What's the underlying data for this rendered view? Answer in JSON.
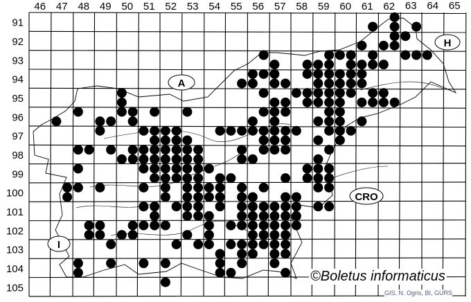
{
  "grid": {
    "columns": [
      "46",
      "47",
      "48",
      "49",
      "50",
      "51",
      "52",
      "53",
      "54",
      "55",
      "56",
      "57",
      "58",
      "59",
      "60",
      "61",
      "62",
      "63",
      "64",
      "65"
    ],
    "rows": [
      "91",
      "92",
      "93",
      "94",
      "95",
      "96",
      "97",
      "98",
      "99",
      "100",
      "101",
      "102",
      "103",
      "104",
      "105"
    ]
  },
  "country_labels": {
    "austria": "A",
    "hungary": "H",
    "croatia": "CRO",
    "italy": "I"
  },
  "copyright": "©Boletus informaticus",
  "credit": "GIS, N. Ogris, BI, GURS",
  "colors": {
    "dot": "#000000",
    "grid": "#000000",
    "credit": "#4a5a78"
  },
  "records": [
    {
      "row": 91.25,
      "cols": [
        62.75
      ]
    },
    {
      "row": 91.75,
      "cols": [
        61.75,
        62.75,
        63.75
      ]
    },
    {
      "row": 92.25,
      "cols": [
        62.75,
        63.25
      ]
    },
    {
      "row": 92.75,
      "cols": [
        61.25,
        62.25,
        62.75
      ]
    },
    {
      "row": 93.25,
      "cols": [
        56.75,
        59.75,
        60.25,
        60.75,
        61.75,
        63.25,
        63.75,
        64.25
      ]
    },
    {
      "row": 93.75,
      "cols": [
        57.25,
        58.75,
        59.25,
        59.75,
        60.75,
        61.25,
        61.75,
        62.25
      ]
    },
    {
      "row": 94.25,
      "cols": [
        56.25,
        56.75,
        57.25,
        58.75,
        59.25,
        59.75,
        60.25,
        60.75,
        61.25
      ]
    },
    {
      "row": 94.75,
      "cols": [
        55.75,
        56.25,
        57.25,
        57.75,
        59.25,
        59.75,
        60.25,
        60.75,
        61.25
      ]
    },
    {
      "row": 95.25,
      "cols": [
        50.25,
        56.75,
        58.25,
        58.75,
        59.25,
        59.75,
        60.25,
        60.75,
        61.75,
        62.25
      ]
    },
    {
      "row": 95.75,
      "cols": [
        50.25,
        57.25,
        57.75,
        58.75,
        59.25,
        59.75,
        60.25,
        61.25,
        61.75,
        62.25,
        62.75
      ]
    },
    {
      "row": 96.25,
      "cols": [
        48.25,
        50.25,
        50.75,
        51.75,
        53.25,
        56.75,
        57.25,
        57.75,
        59.75,
        60.25
      ]
    },
    {
      "row": 96.75,
      "cols": [
        47.25,
        49.25,
        49.75,
        50.75,
        56.25,
        57.25,
        59.25,
        59.75,
        60.25,
        61.25
      ]
    },
    {
      "row": 97.25,
      "cols": [
        49.25,
        51.25,
        51.75,
        52.25,
        52.75,
        54.75,
        55.25,
        55.75,
        56.25,
        56.75,
        57.25,
        57.75,
        58.25,
        59.75,
        60.25,
        60.75
      ]
    },
    {
      "row": 97.75,
      "cols": [
        51.75,
        52.25,
        52.75,
        53.25,
        56.75,
        57.25,
        57.75,
        59.25,
        60.25
      ]
    },
    {
      "row": 98.25,
      "cols": [
        48.25,
        48.75,
        49.75,
        50.75,
        51.25,
        51.75,
        52.25,
        52.75,
        53.25,
        53.75,
        55.75,
        56.75,
        57.25,
        57.75,
        59.75
      ]
    },
    {
      "row": 98.75,
      "cols": [
        50.25,
        50.75,
        51.25,
        51.75,
        52.25,
        52.75,
        53.25,
        53.75,
        55.75,
        56.25,
        59.25
      ]
    },
    {
      "row": 99.25,
      "cols": [
        48.25,
        51.25,
        51.75,
        52.25,
        52.75,
        53.25,
        53.75,
        54.25,
        58.75,
        59.25,
        59.75
      ]
    },
    {
      "row": 99.75,
      "cols": [
        51.75,
        52.25,
        52.75,
        53.25,
        53.75,
        54.75,
        55.25,
        57.75,
        58.75,
        59.25,
        59.75
      ]
    },
    {
      "row": 100.25,
      "cols": [
        47.75,
        48.25,
        49.25,
        51.25,
        52.25,
        53.25,
        53.75,
        54.25,
        54.75,
        55.75,
        56.75,
        59.25,
        59.75
      ]
    },
    {
      "row": 100.75,
      "cols": [
        47.75,
        52.25,
        53.25,
        53.75,
        54.25,
        54.75,
        55.75,
        56.25,
        57.75,
        58.25
      ]
    },
    {
      "row": 101.25,
      "cols": [
        51.25,
        51.75,
        52.75,
        53.25,
        53.75,
        54.75,
        55.75,
        56.25,
        56.75,
        57.25,
        57.75,
        58.25,
        59.25,
        59.75
      ]
    },
    {
      "row": 101.75,
      "cols": [
        51.75,
        53.25,
        53.75,
        54.25,
        55.75,
        56.25,
        56.75,
        57.25,
        57.75,
        58.25
      ]
    },
    {
      "row": 102.25,
      "cols": [
        48.75,
        49.25,
        50.75,
        51.25,
        51.75,
        52.25,
        54.25,
        55.25,
        55.75,
        56.25,
        56.75,
        57.25,
        57.75,
        58.25
      ]
    },
    {
      "row": 102.75,
      "cols": [
        48.75,
        49.25,
        50.25,
        50.75,
        53.25,
        54.25,
        56.25,
        56.75,
        57.25,
        57.75
      ]
    },
    {
      "row": 103.25,
      "cols": [
        49.75,
        52.75,
        53.75,
        54.25,
        55.25,
        55.75,
        56.25,
        56.75,
        57.25,
        57.75
      ]
    },
    {
      "row": 103.75,
      "cols": [
        54.75,
        55.75,
        56.25,
        57.25,
        57.75
      ]
    },
    {
      "row": 104.25,
      "cols": [
        48.25,
        49.75,
        51.25,
        52.25,
        54.75,
        55.75,
        57.25
      ]
    },
    {
      "row": 104.75,
      "cols": [
        48.25,
        54.75,
        55.25,
        57.75
      ]
    },
    {
      "row": 105.25,
      "cols": [
        52.25
      ]
    }
  ]
}
